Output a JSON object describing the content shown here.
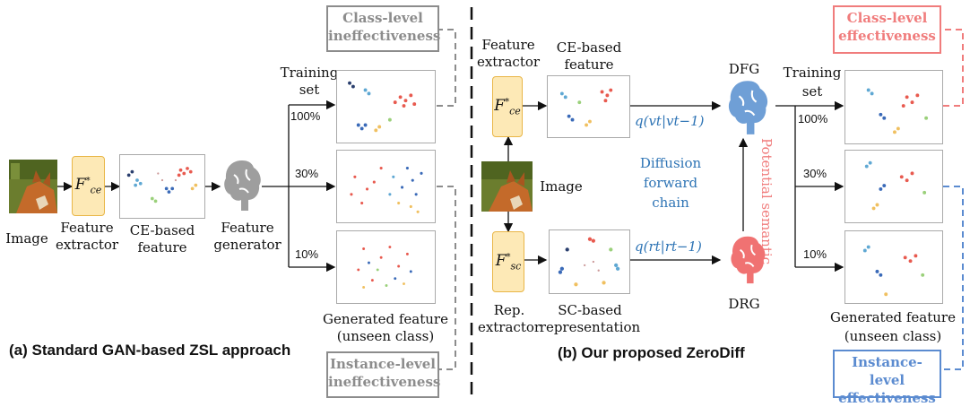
{
  "left": {
    "image_label": "Image",
    "extractor_symbol": "F*ce",
    "extractor_label": [
      "Feature",
      "extractor"
    ],
    "feature_label": [
      "CE-based",
      "feature"
    ],
    "generator_label": [
      "Feature",
      "generator"
    ],
    "training_set_label": [
      "Training",
      "set"
    ],
    "percents": [
      "100%",
      "30%",
      "10%"
    ],
    "generated_label": [
      "Generated feature",
      "(unseen class)"
    ],
    "class_box": [
      "Class-level",
      "ineffectiveness"
    ],
    "instance_box": [
      "Instance-level",
      "ineffectiveness"
    ],
    "caption": "(a) Standard GAN-based ZSL approach"
  },
  "right": {
    "ce_extractor_label": [
      "Feature",
      "extractor"
    ],
    "ce_extractor_symbol": "F*ce",
    "ce_feature_label": [
      "CE-based",
      "feature"
    ],
    "image_label": "Image",
    "sc_extractor_symbol": "F*sc",
    "sc_extractor_label": [
      "Rep.",
      "extractor"
    ],
    "sc_feature_label": [
      "SC-based",
      "representation"
    ],
    "dfg_label": "DFG",
    "drg_label": "DRG",
    "q_v": "q(vt|vt−1)",
    "q_r": "q(rt|rt−1)",
    "diffusion_label": [
      "Diffusion",
      "forward",
      "chain"
    ],
    "potential_label": "Potential semantic",
    "training_set_label": [
      "Training",
      "set"
    ],
    "percents": [
      "100%",
      "30%",
      "10%"
    ],
    "generated_label": [
      "Generated feature",
      "(unseen class)"
    ],
    "class_box": [
      "Class-level",
      "effectiveness"
    ],
    "instance_box": [
      "Instance-level",
      "effectiveness"
    ],
    "caption": "(b) Our proposed ZeroDiff"
  },
  "colors": {
    "ineffective_gray": "#8c8c8c",
    "effective_red": "#f07c7c",
    "effective_blue": "#5b8bd0",
    "math_blue": "#2e74b5",
    "extractor_fill": "#fde9b6",
    "brain_gray": "#9e9e9e",
    "brain_blue": "#6f9fd6",
    "brain_red": "#f07272"
  },
  "icons": [
    "fox-image",
    "brain-icon-gray",
    "brain-icon-blue",
    "brain-icon-red"
  ]
}
